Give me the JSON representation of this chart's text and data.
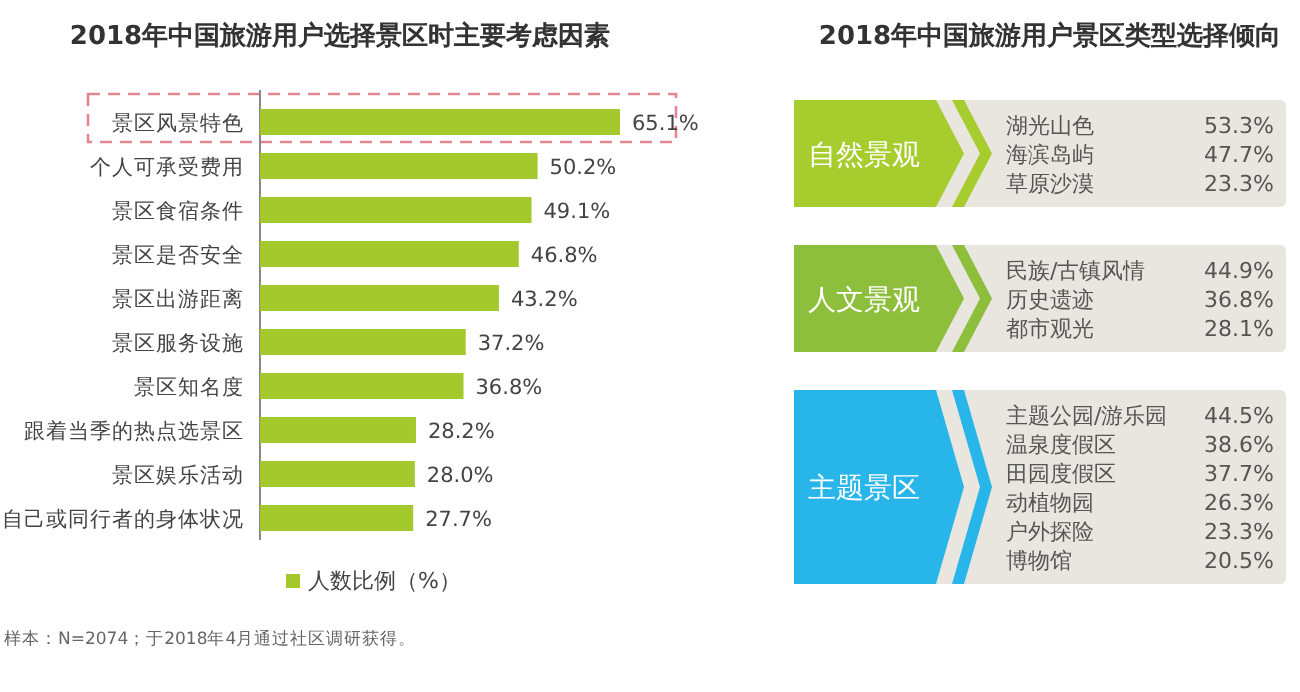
{
  "chart_data": [
    {
      "type": "bar",
      "orientation": "horizontal",
      "title": "2018年中国旅游用户选择景区时主要考虑因素",
      "categories": [
        "景区风景特色",
        "个人可承受费用",
        "景区食宿条件",
        "景区是否安全",
        "景区出游距离",
        "景区服务设施",
        "景区知名度",
        "跟着当季的热点选景区",
        "景区娱乐活动",
        "自己或同行者的身体状况"
      ],
      "series": [
        {
          "name": "人数比例（%）",
          "color": "#a3c92c",
          "values": [
            65.1,
            50.2,
            49.1,
            46.8,
            43.2,
            37.2,
            36.8,
            28.2,
            28.0,
            27.7
          ],
          "value_labels": [
            "65.1%",
            "50.2%",
            "49.1%",
            "46.8%",
            "43.2%",
            "37.2%",
            "36.8%",
            "28.2%",
            "28.0%",
            "27.7%"
          ]
        }
      ],
      "tick_labels": "y",
      "legend": "bottom",
      "annotations": [
        "样本：N=2074；于2018年4月通过社区调研获得。"
      ]
    },
    {
      "type": "other",
      "title": "2018年中国旅游用户景区类型选择倾向",
      "annotations": [
        "自然景观",
        "湖光山色",
        "53.3%",
        "海滨岛屿",
        "47.7%",
        "草原沙漠",
        "23.3%",
        "人文景观",
        "民族/古镇风情",
        "44.9%",
        "历史遗迹",
        "36.8%",
        "都市观光",
        "28.1%",
        "主题景区",
        "主题公园/游乐园",
        "44.5%",
        "温泉度假区",
        "38.6%",
        "田园度假区",
        "37.7%",
        "动植物园",
        "26.3%",
        "户外探险",
        "23.3%",
        "博物馆",
        "20.5%"
      ]
    }
  ]
}
